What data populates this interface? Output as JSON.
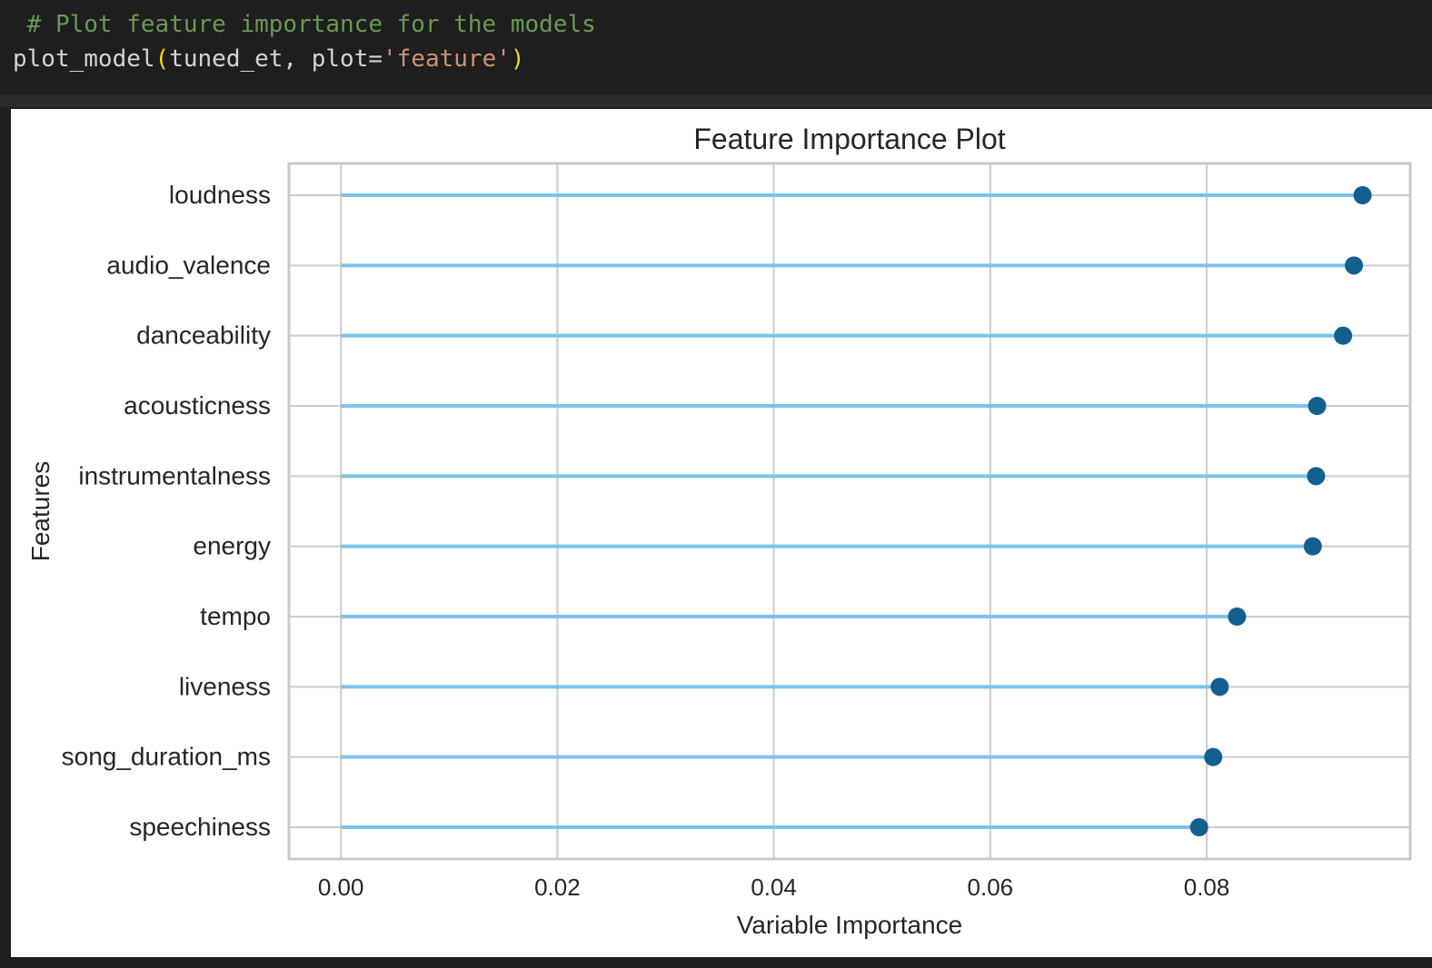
{
  "code": {
    "comment": " # Plot feature importance for the models",
    "call_fn": "plot_model",
    "call_open": "(",
    "call_args": "tuned_et, plot=",
    "call_str": "'feature'",
    "call_close": ")"
  },
  "chart_data": {
    "type": "scatter",
    "style": "lollipop-horizontal",
    "title": "Feature Importance Plot",
    "xlabel": "Variable Importance",
    "ylabel": "Features",
    "categories": [
      "loudness",
      "audio_valence",
      "danceability",
      "acousticness",
      "instrumentalness",
      "energy",
      "tempo",
      "liveness",
      "song_duration_ms",
      "speechiness"
    ],
    "values": [
      0.0944,
      0.0936,
      0.0926,
      0.0902,
      0.0901,
      0.0898,
      0.0828,
      0.0812,
      0.0806,
      0.0793
    ],
    "xticks": [
      "0.00",
      "0.02",
      "0.04",
      "0.06",
      "0.08"
    ],
    "xtick_values": [
      0.0,
      0.02,
      0.04,
      0.06,
      0.08
    ],
    "xlim": [
      -0.0048,
      0.0988
    ],
    "grid": true,
    "colors": {
      "stem": "#7cc3ea",
      "marker": "#135f92",
      "grid": "#cccccc",
      "frame": "#c8c8c8",
      "text": "#262626"
    }
  }
}
